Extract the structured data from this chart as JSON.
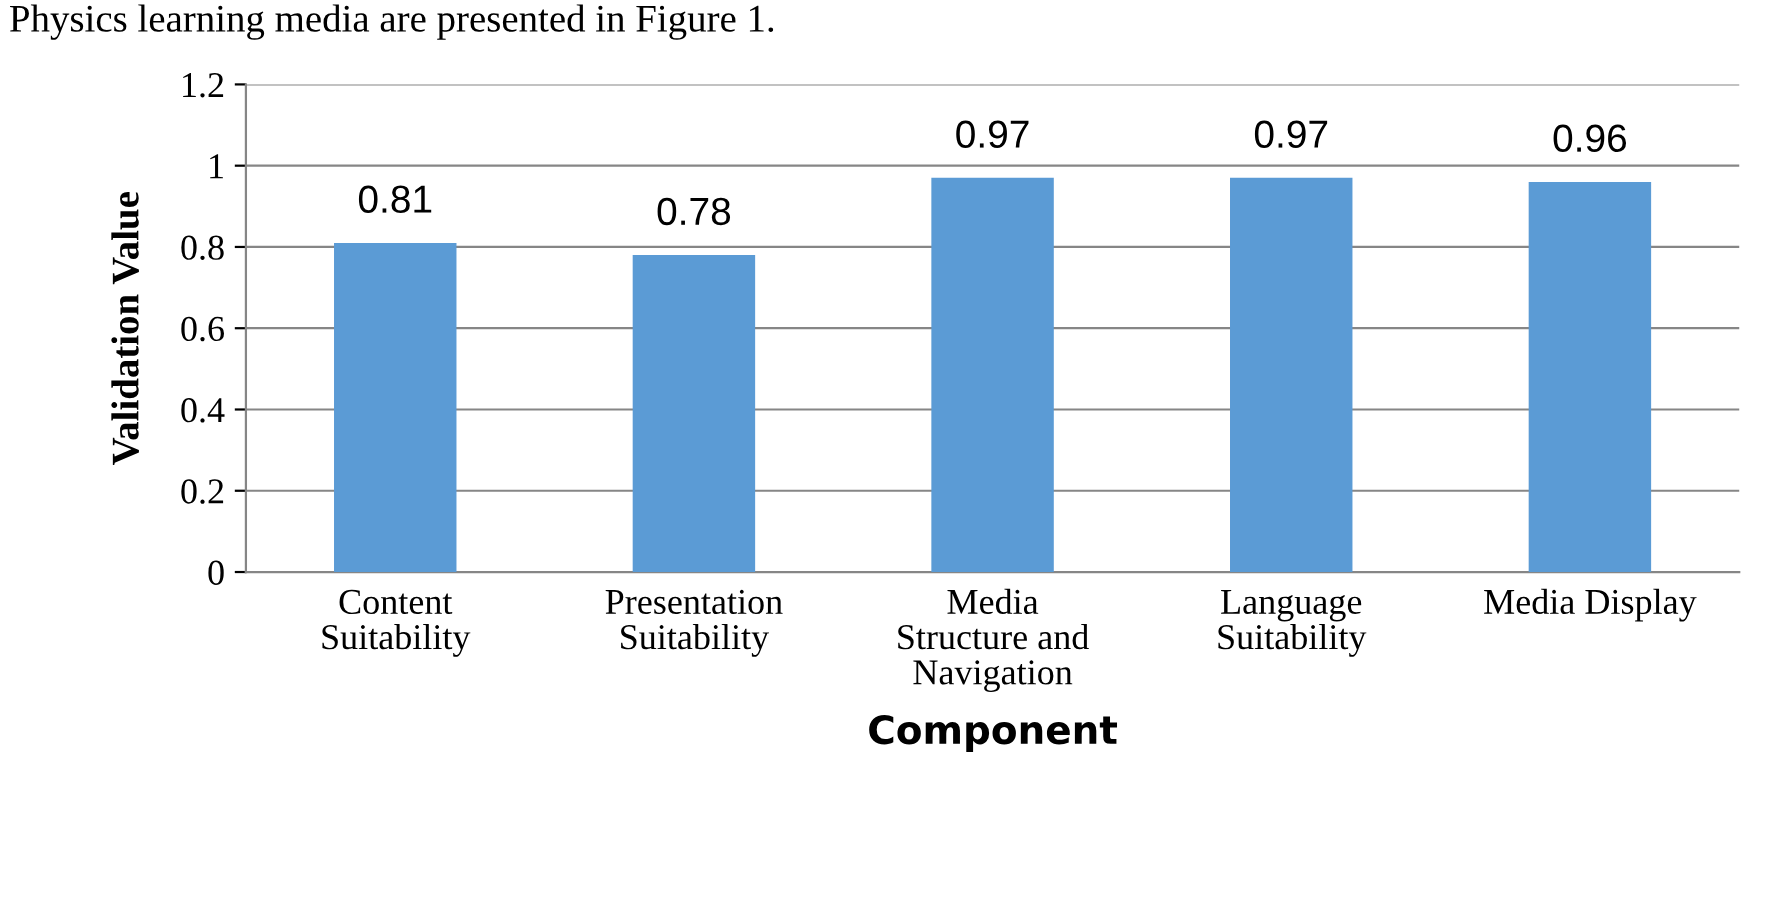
{
  "chart_data": {
    "type": "bar",
    "annotations": [
      "Physics learning media are presented in Figure 1."
    ],
    "xlabel": "Component",
    "ylabel": "Validation Value",
    "categories": [
      "Content\nSuitability",
      "Presentation\nSuitability",
      "Media\nStructure and\nNavigation",
      "Language\nSuitability",
      "Media Display"
    ],
    "values": [
      0.81,
      0.78,
      0.97,
      0.97,
      0.96
    ],
    "color": "#5b9bd5",
    "ylim": [
      0,
      1.2
    ],
    "yticks": [
      {
        "value": 0,
        "label": "0"
      },
      0.2,
      0.4,
      0.6,
      0.8,
      {
        "value": 1,
        "label": "1"
      },
      1.2
    ],
    "grid": "y",
    "data_labels": true
  }
}
